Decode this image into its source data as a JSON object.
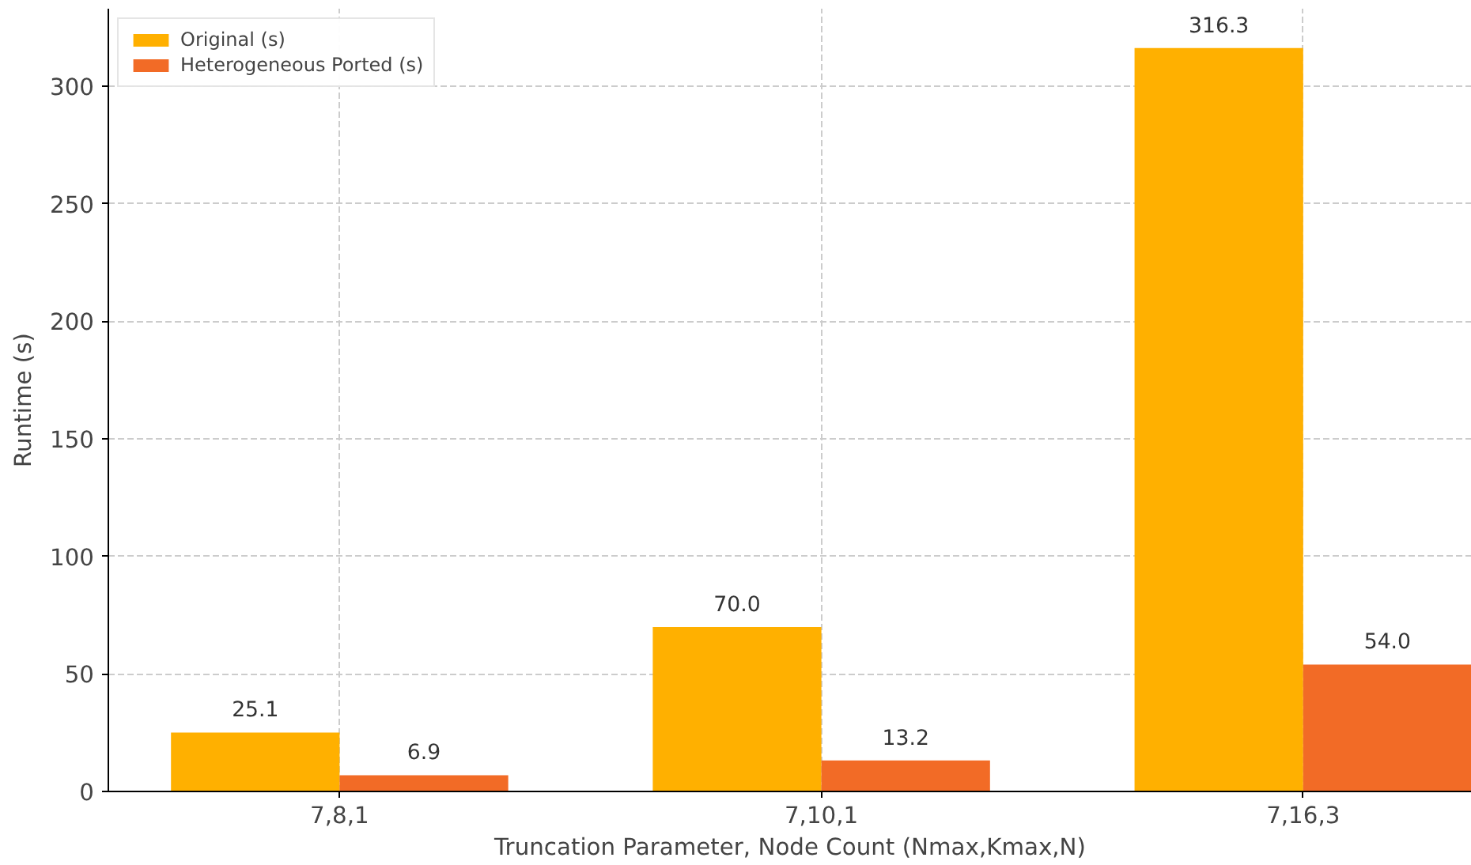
{
  "chart_data": {
    "type": "bar",
    "xlabel": "Truncation Parameter, Node Count (Nmax,Kmax,N)",
    "ylabel": "Runtime (s)",
    "categories": [
      "7,8,1",
      "7,10,1",
      "7,16,3"
    ],
    "series": [
      {
        "name": "Original (s)",
        "color": "#ffb000",
        "values": [
          25.1,
          70.0,
          316.3
        ],
        "value_labels": [
          "25.1",
          "70.0",
          "316.3"
        ]
      },
      {
        "name": "Heterogeneous Ported (s)",
        "color": "#f26b26",
        "values": [
          6.9,
          13.2,
          54.0
        ],
        "value_labels": [
          "6.9",
          "13.2",
          "54.0"
        ]
      }
    ],
    "ylim": [
      0,
      333
    ],
    "yticks": [
      0,
      50,
      100,
      150,
      200,
      250,
      300
    ],
    "grid": true,
    "legend": "top left"
  }
}
